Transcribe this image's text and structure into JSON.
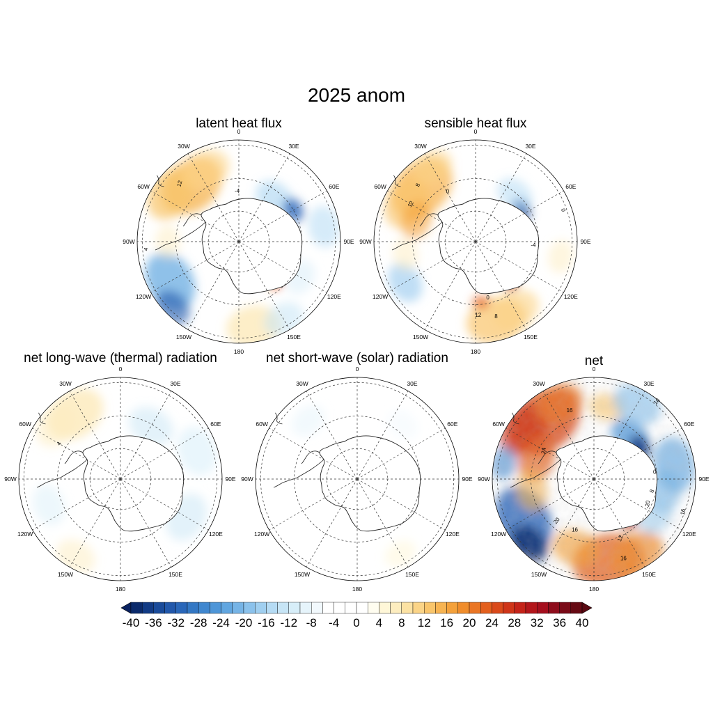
{
  "title": "2025 anom",
  "panels": [
    {
      "id": "latent",
      "title": "latent heat flux",
      "contour_labels": [
        "12",
        "-4",
        "4"
      ]
    },
    {
      "id": "sensible",
      "title": "sensible heat flux",
      "contour_labels": [
        "8",
        "12",
        "0",
        "0",
        "-4",
        "0",
        "12",
        "8"
      ]
    },
    {
      "id": "longwave",
      "title": "net long-wave (thermal) radiation",
      "contour_labels": [
        "4"
      ]
    },
    {
      "id": "shortwave",
      "title": "net short-wave (solar) radiation",
      "contour_labels": []
    },
    {
      "id": "net",
      "title": "net",
      "contour_labels": [
        "16",
        "16",
        "24",
        "0",
        "8",
        "20",
        "16",
        "12",
        "16",
        "16",
        "-20"
      ]
    }
  ],
  "longitude_labels": [
    "0",
    "30E",
    "60E",
    "90E",
    "120E",
    "150E",
    "180",
    "150W",
    "120W",
    "90W",
    "60W",
    "30W"
  ],
  "colorbar": {
    "tick_labels": [
      "-40",
      "-36",
      "-32",
      "-28",
      "-24",
      "-20",
      "-16",
      "-12",
      "-8",
      "-4",
      "0",
      "4",
      "8",
      "12",
      "16",
      "20",
      "24",
      "28",
      "32",
      "36",
      "40"
    ],
    "min": -40,
    "max": 40,
    "interval": 2,
    "colors": [
      "#0b2a6b",
      "#123b85",
      "#1a4b9a",
      "#2258ab",
      "#2a67b9",
      "#3478c4",
      "#4087cf",
      "#4e96d8",
      "#61a6e0",
      "#76b4e6",
      "#8bc2ec",
      "#a0cff0",
      "#b5dbf4",
      "#c7e5f6",
      "#d7eef9",
      "#e6f4fb",
      "#f2f9fd",
      "#ffffff",
      "#ffffff",
      "#ffffff",
      "#ffffff",
      "#fffdf0",
      "#fff7d8",
      "#fdedbf",
      "#fce2a3",
      "#fbd487",
      "#f9c56b",
      "#f7b452",
      "#f4a13b",
      "#f08d2c",
      "#ea7624",
      "#e3601e",
      "#da4a1b",
      "#cf3519",
      "#c42319",
      "#b3161b",
      "#a50f1e",
      "#8e0d1c",
      "#7a0b18",
      "#660a14"
    ],
    "under_color": "#0a2260",
    "over_color": "#5a0912"
  }
}
